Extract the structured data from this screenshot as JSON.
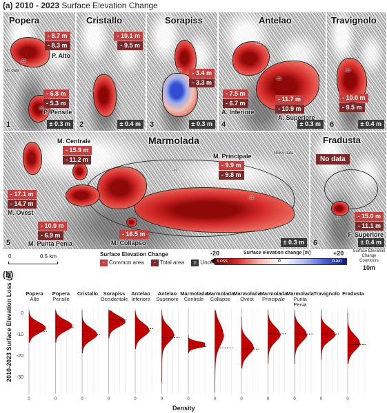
{
  "figure": {
    "panel_a_label": "(a)",
    "title": "2010 - 2023",
    "title_rest": "Surface Elevation Change",
    "panel_b_label": "(b)"
  },
  "maps": [
    {
      "key": "popera",
      "name": "Popera",
      "number": "1",
      "parts": [
        {
          "label": "P. Alto",
          "common": "- 8.7 m",
          "total": "- 8.3 m"
        },
        {
          "label": "P. Pensile",
          "common": "- 6.8 m",
          "total": "- 5.3 m"
        }
      ],
      "uncertainty": "± 0.3 m",
      "note": "No data"
    },
    {
      "key": "cristallo",
      "name": "Cristallo",
      "number": "2",
      "parts": [
        {
          "label": "",
          "common": "- 10.1 m",
          "total": "- 9.5 m"
        }
      ],
      "uncertainty": "± 0.4 m"
    },
    {
      "key": "sorapiss",
      "name": "Sorapiss",
      "number": "3",
      "parts": [
        {
          "label": "",
          "common": "- 3.4 m",
          "total": "- 3.3 m"
        }
      ],
      "uncertainty": "± 0.3 m"
    },
    {
      "key": "antelao",
      "name": "Antelao",
      "number": "4",
      "parts": [
        {
          "label": "A. Inferiore",
          "common": "- 7.5 m",
          "total": "- 6.7 m"
        },
        {
          "label": "A. Superiore",
          "common": "- 11.7 m",
          "total": "- 10.9 m"
        }
      ],
      "uncertainty": "± 0.3 m"
    },
    {
      "key": "travignolo",
      "name": "Travignolo",
      "number": "6",
      "parts": [
        {
          "label": "",
          "common": "- 10.0 m",
          "total": "- 9.5 m"
        }
      ],
      "uncertainty": "± 0.4 m"
    },
    {
      "key": "marmolada",
      "name": "Marmolada",
      "number": "5",
      "parts": [
        {
          "label": "M. Centrale",
          "common": "- 15.9 m",
          "total": "- 11.2 m"
        },
        {
          "label": "M. Principale",
          "common": "- 9.9 m",
          "total": "- 9.8 m"
        },
        {
          "label": "M. Ovest",
          "common": "- 17.1 m",
          "total": "- 14.7 m"
        },
        {
          "label": "M. Punta Penia",
          "common": "- 10.0 m",
          "total": "- 6.9 m"
        },
        {
          "label": "M. Collapso",
          "common": "- 16.5 m",
          "total": ""
        }
      ],
      "uncertainty": "± 0.3 m",
      "note": "Noisy data"
    },
    {
      "key": "fradusta",
      "name": "Fradusta",
      "number": "6",
      "parts": [
        {
          "label": "F. Superiore",
          "common": "- 15.0 m",
          "total": "- 11.1 m"
        }
      ],
      "uncertainty": "± 0.4 m",
      "note": "No data"
    }
  ],
  "contour_labels": [
    "-10",
    "-10",
    "-10",
    "-10",
    "-10",
    "-10",
    "-10",
    "-10",
    "-10",
    "-10"
  ],
  "legend": {
    "scale_0": "0",
    "scale_end": "0.5 km",
    "group_title": "Surface Elevation Change",
    "common": "Common area",
    "total": "Total area",
    "uncertainty": "Uncertainty",
    "colorbar_title": "Surface elevation change [m]",
    "colorbar_min": "-20",
    "colorbar_mid": "0",
    "colorbar_max": "+20",
    "loss": "Loss",
    "gain": "Gain",
    "contours_title": "Surface Elevation Change Countours",
    "contours_interval": "10m",
    "colors": {
      "loss": "#8b0000",
      "mid": "#ffffff",
      "gain": "#0a1a8c"
    }
  },
  "chart_data": {
    "type": "density",
    "xlabel": "Density",
    "ylabel": "2010-2023 Surface Elevation Loss (m)",
    "y_ticks": [
      "0",
      "-10",
      "-20",
      "-30"
    ],
    "x_tick": "0",
    "ylim": [
      -38,
      2
    ],
    "fill_color": "#c00000",
    "series": [
      {
        "name": "Popera",
        "sub": "Alto",
        "mean": -8.7,
        "peak": -7,
        "spread": 2.5,
        "max_loss": -14
      },
      {
        "name": "Popera",
        "sub": "Pensile",
        "mean": -6.8,
        "peak": -6,
        "spread": 2.5,
        "max_loss": -14
      },
      {
        "name": "Cristallo",
        "sub": "",
        "mean": -10.1,
        "peak": -10,
        "spread": 2.8,
        "max_loss": -19
      },
      {
        "name": "Sorapiss",
        "sub": "Occidentale",
        "mean": -3.4,
        "peak": -4,
        "spread": 2.5,
        "max_loss": -12
      },
      {
        "name": "Antelao",
        "sub": "Inferiore",
        "mean": -7.5,
        "peak": -8,
        "spread": 3,
        "max_loss": -17
      },
      {
        "name": "Antelao",
        "sub": "Superiore",
        "mean": -11.7,
        "peak": -10,
        "spread": 3.5,
        "max_loss": -33
      },
      {
        "name": "Marmolada",
        "sub": "Centrale",
        "mean": -15.9,
        "peak": -15,
        "spread": 1.2,
        "max_loss": -19
      },
      {
        "name": "Marmolada",
        "sub": "Collapse",
        "mean": -16.5,
        "peak": -10,
        "spread": 5,
        "max_loss": -37
      },
      {
        "name": "Marmolada",
        "sub": "Ovest",
        "mean": -17.1,
        "peak": -16,
        "spread": 3.5,
        "max_loss": -26
      },
      {
        "name": "Marmolada",
        "sub": "Principale",
        "mean": -9.9,
        "peak": -10,
        "spread": 3.5,
        "max_loss": -24
      },
      {
        "name": "Marmolada",
        "sub": "Punta Penia",
        "mean": -10.0,
        "peak": -10,
        "spread": 3.5,
        "max_loss": -24
      },
      {
        "name": "Travignolo",
        "sub": "",
        "mean": -10.0,
        "peak": -10,
        "spread": 3,
        "max_loss": -22
      },
      {
        "name": "Fradusta",
        "sub": "",
        "mean": -15.0,
        "peak": -14,
        "spread": 3.5,
        "max_loss": -24
      }
    ]
  }
}
